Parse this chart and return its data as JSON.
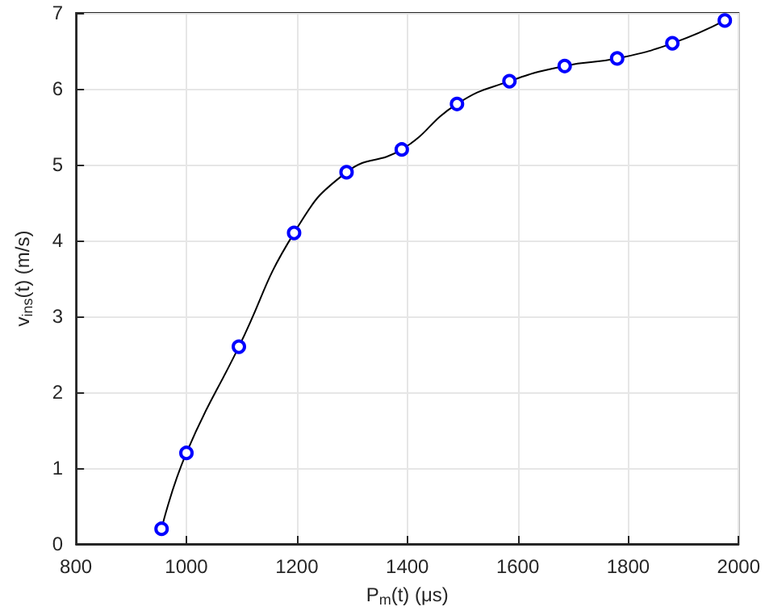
{
  "chart_data": {
    "type": "line",
    "xlabel": "P$_{m}$(t) (μs)",
    "ylabel": "v$_{ins}$(t) (m/s)",
    "x": [
      955,
      1000,
      1095,
      1195,
      1290,
      1390,
      1490,
      1585,
      1685,
      1780,
      1880,
      1975
    ],
    "series": [
      {
        "color": "#000000",
        "colors": [
          "#0000ff",
          "#0000ff",
          "#0000ff",
          "#0000ff",
          "#0000ff",
          "#0000ff",
          "#0000ff",
          "#0000ff",
          "#0000ff",
          "#0000ff",
          "#0000ff",
          "#0000ff"
        ],
        "values": [
          0.2,
          1.2,
          2.6,
          4.1,
          4.9,
          5.2,
          5.8,
          6.1,
          6.3,
          6.4,
          6.6,
          6.9
        ]
      }
    ],
    "xlim": [
      800,
      2000
    ],
    "xticks": [
      800,
      1000,
      1200,
      1400,
      1600,
      1800,
      2000
    ],
    "ylim": [
      0,
      7
    ],
    "yticks": [
      0,
      1,
      2,
      3,
      4,
      5,
      6,
      7
    ],
    "grid": true,
    "marker": "circle",
    "line_style": "solid"
  }
}
